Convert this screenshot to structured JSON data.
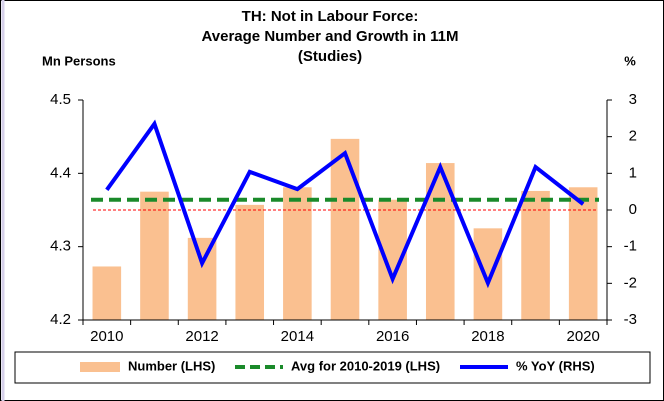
{
  "chart_data": {
    "type": "bar_line",
    "title": [
      "TH: Not in Labour Force:",
      "Average Number and Growth in 11M",
      "(Studies)"
    ],
    "ylabel": "Mn Persons",
    "y2label": "%",
    "categories": [
      "2010",
      null,
      "2012",
      null,
      "2014",
      null,
      "2016",
      null,
      "2018",
      null,
      "2020"
    ],
    "series": [
      {
        "name": "Number (LHS)",
        "type": "bar",
        "color": "#fac090",
        "values": [
          4.273,
          4.375,
          4.312,
          4.357,
          4.381,
          4.447,
          4.364,
          4.414,
          4.325,
          4.376,
          4.381
        ]
      },
      {
        "name": "Avg for 2010-2019 (LHS)",
        "type": "hline",
        "color": "#1a8a2a",
        "value": 4.364
      },
      {
        "name": "% YoY (RHS)",
        "type": "line",
        "axis": "y2",
        "color": "#0000ff",
        "values": [
          0.55,
          2.35,
          -1.45,
          1.04,
          0.57,
          1.55,
          -1.88,
          1.17,
          -1.99,
          1.17,
          0.16
        ]
      }
    ],
    "y2_refline": {
      "value": 0,
      "color": "#ff0000"
    },
    "ylim": [
      4.2,
      4.5
    ],
    "yticks": [
      4.2,
      4.3,
      4.4,
      4.5
    ],
    "y2lim": [
      -3,
      3
    ],
    "y2ticks": [
      -3,
      -2,
      -1,
      0,
      1,
      2,
      3
    ],
    "legend": "bottom"
  }
}
